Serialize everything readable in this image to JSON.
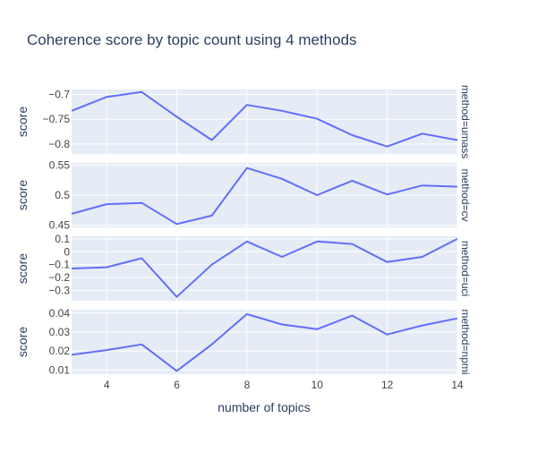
{
  "chart_data": {
    "type": "line",
    "title": "Coherence score by topic count using 4 methods",
    "xlabel": "number of topics",
    "ylabel": "score",
    "x": [
      3,
      4,
      5,
      6,
      7,
      8,
      9,
      10,
      11,
      12,
      13,
      14
    ],
    "xlim": [
      3,
      14
    ],
    "x_ticks": [
      4,
      6,
      8,
      10,
      12,
      14
    ],
    "grid": true,
    "colors": {
      "line": "#636efa",
      "plot_bg": "#e5ecf6",
      "grid": "#ffffff",
      "text": "#2a3f5f",
      "tick_text": "#444444"
    },
    "facets": [
      {
        "label": "method=umass",
        "ylim": [
          -0.82,
          -0.69
        ],
        "y_ticks": [
          -0.7,
          -0.75,
          -0.8
        ],
        "y_tick_labels": [
          "−0.7",
          "−0.75",
          "−0.8"
        ],
        "values": [
          -0.733,
          -0.705,
          -0.695,
          -0.745,
          -0.792,
          -0.721,
          -0.733,
          -0.749,
          -0.782,
          -0.805,
          -0.779,
          -0.792
        ]
      },
      {
        "label": "method=cv",
        "ylim": [
          0.4465,
          0.5535
        ],
        "y_ticks": [
          0.45,
          0.5,
          0.55
        ],
        "y_tick_labels": [
          "0.45",
          "0.5",
          "0.55"
        ],
        "values": [
          0.469,
          0.485,
          0.487,
          0.452,
          0.466,
          0.545,
          0.527,
          0.5,
          0.524,
          0.501,
          0.516,
          0.514
        ]
      },
      {
        "label": "method=uci",
        "ylim": [
          -0.38,
          0.12
        ],
        "y_ticks": [
          0.1,
          0,
          -0.1,
          -0.2,
          -0.3
        ],
        "y_tick_labels": [
          "0.1",
          "0",
          "−0.1",
          "−0.2",
          "−0.3"
        ],
        "values": [
          -0.13,
          -0.12,
          -0.05,
          -0.35,
          -0.1,
          0.08,
          -0.04,
          0.08,
          0.06,
          -0.08,
          -0.04,
          0.1
        ]
      },
      {
        "label": "method=npmi",
        "ylim": [
          0.0078,
          0.0418
        ],
        "y_ticks": [
          0.04,
          0.03,
          0.02,
          0.01
        ],
        "y_tick_labels": [
          "0.04",
          "0.03",
          "0.02",
          "0.01"
        ],
        "values": [
          0.018,
          0.0205,
          0.0235,
          0.0095,
          0.0235,
          0.0395,
          0.034,
          0.0315,
          0.0387,
          0.0287,
          0.0335,
          0.0372
        ]
      }
    ]
  }
}
